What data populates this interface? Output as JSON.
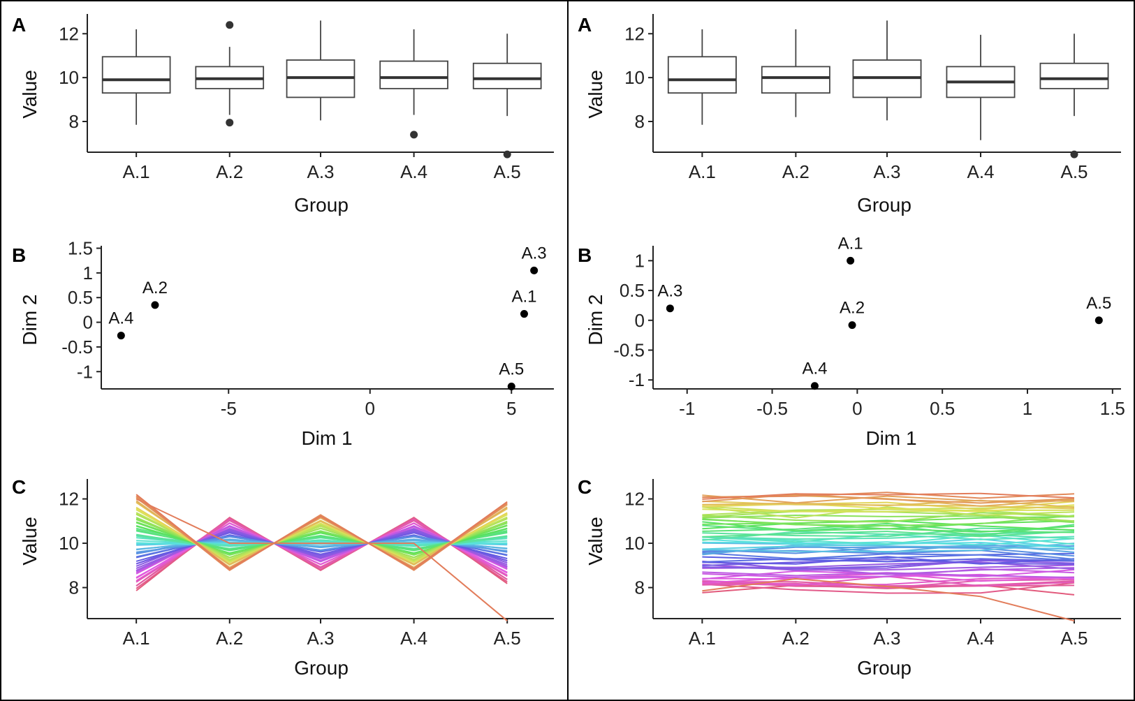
{
  "figure": {
    "columns": [
      {
        "id": "left",
        "panels": [
          {
            "letter": "A",
            "chart_type": "box",
            "xlabel": "Group",
            "ylabel": "Value",
            "categories": [
              "A.1",
              "A.2",
              "A.3",
              "A.4",
              "A.5"
            ],
            "ylim": [
              6.6,
              12.9
            ],
            "yticks": [
              8,
              10,
              12
            ],
            "boxes": [
              {
                "min": 7.85,
                "q1": 9.3,
                "median": 9.9,
                "q3": 10.95,
                "max": 12.2,
                "outliers": []
              },
              {
                "min": 8.3,
                "q1": 9.5,
                "median": 9.95,
                "q3": 10.5,
                "max": 11.4,
                "outliers": [
                  12.4,
                  7.95
                ]
              },
              {
                "min": 8.05,
                "q1": 9.1,
                "median": 10.0,
                "q3": 10.8,
                "max": 12.6,
                "outliers": []
              },
              {
                "min": 8.3,
                "q1": 9.5,
                "median": 10.0,
                "q3": 10.75,
                "max": 12.2,
                "outliers": [
                  7.4
                ]
              },
              {
                "min": 8.25,
                "q1": 9.5,
                "median": 9.95,
                "q3": 10.65,
                "max": 12.0,
                "outliers": [
                  6.5
                ]
              }
            ]
          },
          {
            "letter": "B",
            "chart_type": "scatter",
            "xlabel": "Dim 1",
            "ylabel": "Dim 2",
            "xlim": [
              -9.5,
              6.5
            ],
            "ylim": [
              -1.35,
              1.55
            ],
            "xticks": [
              -5,
              0,
              5
            ],
            "yticks": [
              -1.0,
              -0.5,
              0.0,
              0.5,
              1.0,
              1.5
            ],
            "points": [
              {
                "label": "A.3",
                "x": 5.8,
                "y": 1.05,
                "label_dx": 0,
                "label_dy": -0.3
              },
              {
                "label": "A.1",
                "x": 5.45,
                "y": 0.17,
                "label_dx": 0,
                "label_dy": -0.3
              },
              {
                "label": "A.2",
                "x": -7.6,
                "y": 0.35,
                "label_dx": 0,
                "label_dy": -0.3
              },
              {
                "label": "A.4",
                "x": -8.8,
                "y": -0.27,
                "label_dx": 0,
                "label_dy": -0.3
              },
              {
                "label": "A.5",
                "x": 5.0,
                "y": -1.3,
                "label_dx": 0,
                "label_dy": -0.3
              }
            ]
          },
          {
            "letter": "C",
            "chart_type": "parallel-lines",
            "xlabel": "Group",
            "ylabel": "Value",
            "categories": [
              "A.1",
              "A.2",
              "A.3",
              "A.4",
              "A.5"
            ],
            "ylim": [
              6.6,
              12.9
            ],
            "yticks": [
              8,
              10,
              12
            ],
            "pattern": "alternating",
            "n_lines": 60,
            "special_line": [
              12.0,
              10.0,
              10.0,
              10.0,
              6.5
            ],
            "palette": "hue"
          }
        ]
      },
      {
        "id": "right",
        "panels": [
          {
            "letter": "A",
            "chart_type": "box",
            "xlabel": "Group",
            "ylabel": "Value",
            "categories": [
              "A.1",
              "A.2",
              "A.3",
              "A.4",
              "A.5"
            ],
            "ylim": [
              6.6,
              12.9
            ],
            "yticks": [
              8,
              10,
              12
            ],
            "boxes": [
              {
                "min": 7.85,
                "q1": 9.3,
                "median": 9.9,
                "q3": 10.95,
                "max": 12.2,
                "outliers": []
              },
              {
                "min": 8.2,
                "q1": 9.3,
                "median": 10.0,
                "q3": 10.5,
                "max": 12.2,
                "outliers": []
              },
              {
                "min": 8.05,
                "q1": 9.1,
                "median": 10.0,
                "q3": 10.8,
                "max": 12.6,
                "outliers": []
              },
              {
                "min": 7.15,
                "q1": 9.1,
                "median": 9.8,
                "q3": 10.5,
                "max": 11.95,
                "outliers": []
              },
              {
                "min": 8.25,
                "q1": 9.5,
                "median": 9.95,
                "q3": 10.65,
                "max": 12.0,
                "outliers": [
                  6.5
                ]
              }
            ]
          },
          {
            "letter": "B",
            "chart_type": "scatter",
            "xlabel": "Dim 1",
            "ylabel": "Dim 2",
            "xlim": [
              -1.2,
              1.55
            ],
            "ylim": [
              -1.15,
              1.25
            ],
            "xticks": [
              -1.0,
              -0.5,
              0.0,
              0.5,
              1.0,
              1.5
            ],
            "yticks": [
              -1.0,
              -0.5,
              0.0,
              0.5,
              1.0
            ],
            "points": [
              {
                "label": "A.1",
                "x": -0.04,
                "y": 1.0,
                "label_dx": 0,
                "label_dy": -0.28
              },
              {
                "label": "A.3",
                "x": -1.1,
                "y": 0.2,
                "label_dx": 0,
                "label_dy": -0.28
              },
              {
                "label": "A.2",
                "x": -0.03,
                "y": -0.08,
                "label_dx": 0,
                "label_dy": -0.28
              },
              {
                "label": "A.5",
                "x": 1.42,
                "y": 0.0,
                "label_dx": 0,
                "label_dy": -0.28
              },
              {
                "label": "A.4",
                "x": -0.25,
                "y": -1.1,
                "label_dx": 0,
                "label_dy": -0.28
              }
            ]
          },
          {
            "letter": "C",
            "chart_type": "parallel-lines",
            "xlabel": "Group",
            "ylabel": "Value",
            "categories": [
              "A.1",
              "A.2",
              "A.3",
              "A.4",
              "A.5"
            ],
            "ylim": [
              6.6,
              12.9
            ],
            "yticks": [
              8,
              10,
              12
            ],
            "pattern": "flat",
            "n_lines": 60,
            "special_line": [
              7.85,
              8.4,
              8.05,
              7.6,
              6.5
            ],
            "palette": "hue"
          }
        ]
      }
    ]
  }
}
